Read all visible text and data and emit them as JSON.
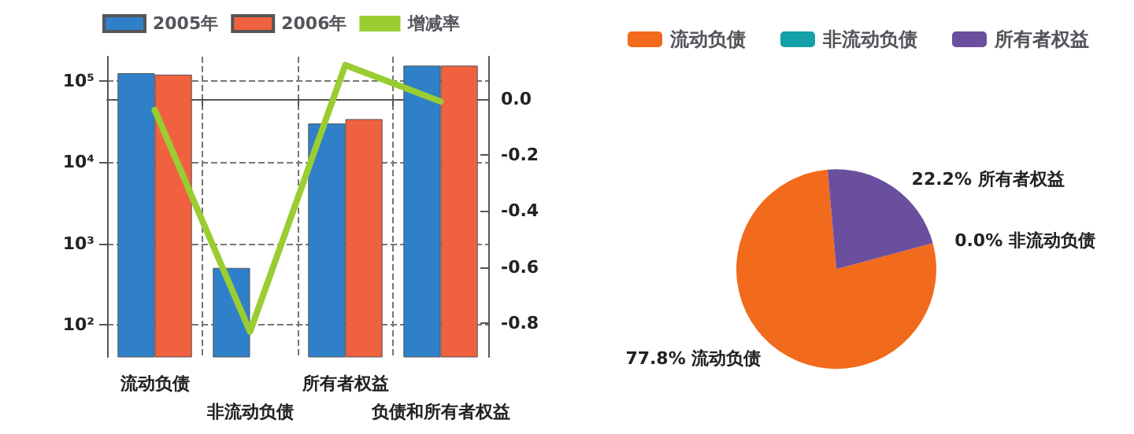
{
  "chart_data": [
    {
      "type": "bar",
      "categories": [
        "流动负债",
        "非流动负债",
        "所有者权益",
        "负债和所有者权益"
      ],
      "series": [
        {
          "name": "2005年",
          "color": "#2f80c8",
          "values": [
            125000,
            500,
            30000,
            155000
          ]
        },
        {
          "name": "2006年",
          "color": "#f0623f",
          "values": [
            120000,
            null,
            34000,
            155000
          ]
        },
        {
          "name": "增减率",
          "type": "line",
          "axis": "y2",
          "color": "#9acd32",
          "values": [
            -0.04,
            -0.83,
            0.12,
            -0.01
          ]
        }
      ],
      "log": "y",
      "ylim": [
        40,
        200000
      ],
      "yticks": [
        {
          "value": 100,
          "label": "10²"
        },
        {
          "value": 1000,
          "label": "10³"
        },
        {
          "value": 10000,
          "label": "10⁴"
        },
        {
          "value": 100000,
          "label": "10⁵"
        }
      ],
      "y2lim": [
        -0.92,
        0.15
      ],
      "y2ticks": [
        {
          "value": -0.8,
          "label": "-0.8"
        },
        {
          "value": -0.6,
          "label": "-0.6"
        },
        {
          "value": -0.4,
          "label": "-0.4"
        },
        {
          "value": -0.2,
          "label": "-0.2"
        },
        {
          "value": 0,
          "label": "0.0"
        }
      ],
      "grid": true,
      "legend": "top",
      "marker": "none",
      "line_style": "solid"
    },
    {
      "type": "pie",
      "categories": [
        "流动负债",
        "非流动负债",
        "所有者权益"
      ],
      "values": [
        77.8,
        0.0,
        22.2
      ],
      "colors": [
        "#f26a1b",
        "#13a0a8",
        "#6a4f9e"
      ],
      "value_labels": [
        "77.8%",
        "0.0%",
        "22.2%"
      ],
      "legend": "top"
    }
  ]
}
